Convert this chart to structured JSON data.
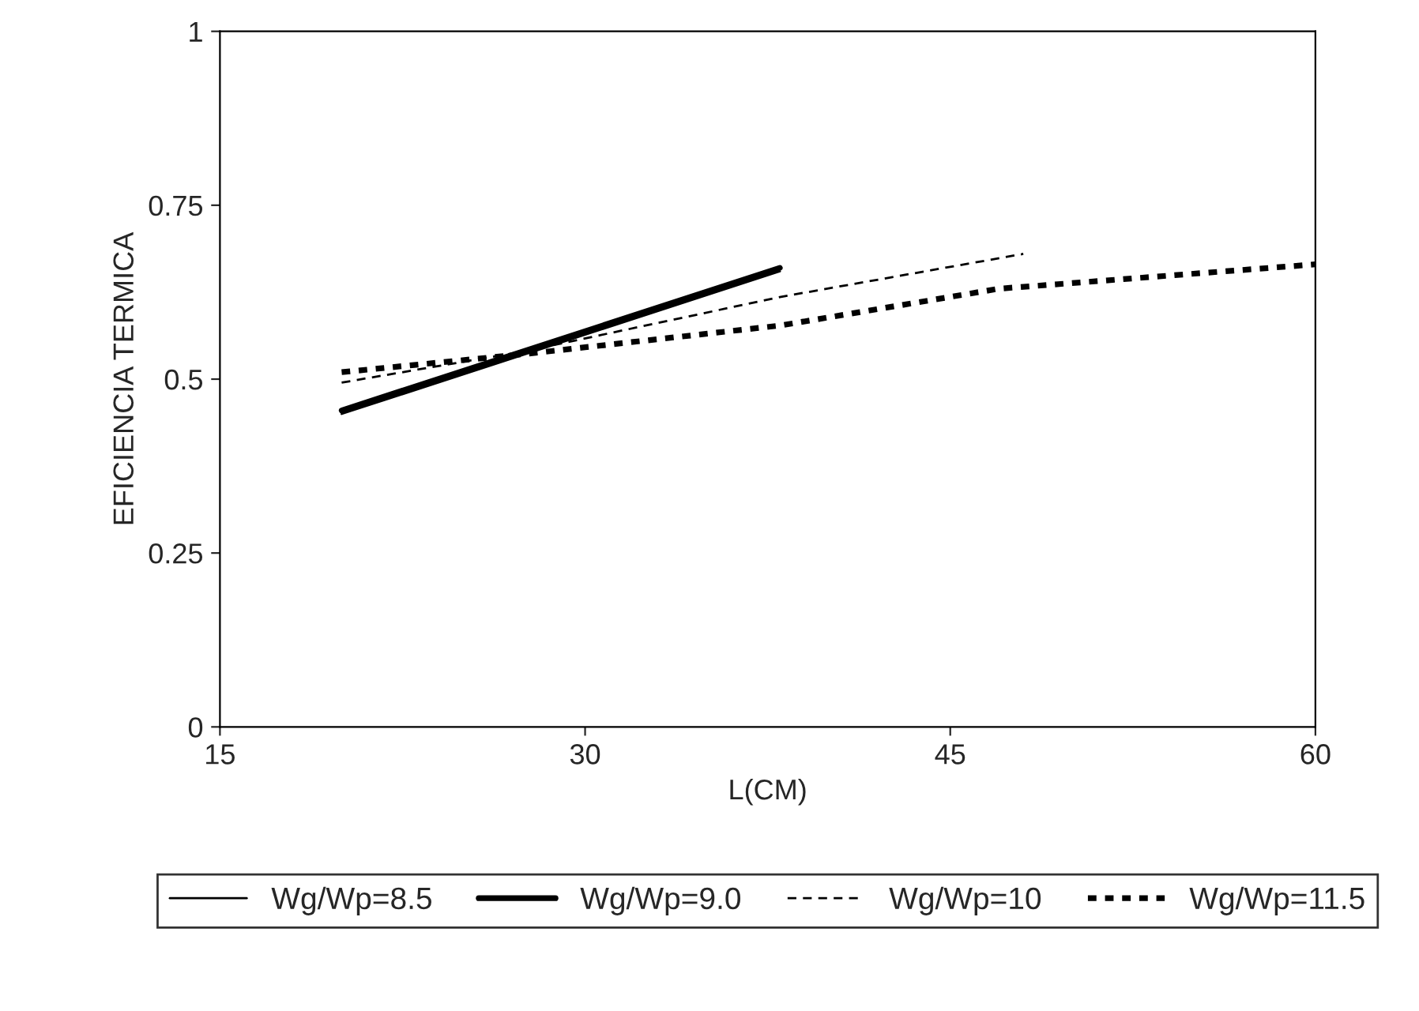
{
  "chart_data": {
    "type": "line",
    "xlabel": "L(CM)",
    "ylabel": "EFICIENCIA TERMICA",
    "xlim": [
      15,
      60
    ],
    "xticks": [
      15,
      30,
      45,
      60
    ],
    "ylim": [
      0,
      1
    ],
    "yticks": [
      0,
      0.25,
      0.5,
      0.75,
      1
    ],
    "grid": false,
    "legend": "bottom",
    "marker": "none",
    "series": [
      {
        "name": "Wg/Wp=8.5",
        "color": "#000000",
        "line_style": "solid",
        "x": [
          20,
          38
        ],
        "values": [
          0.45,
          0.655
        ]
      },
      {
        "name": "Wg/Wp=9.0",
        "color": "#000000",
        "line_style": "solid",
        "x": [
          20,
          38
        ],
        "values": [
          0.455,
          0.66
        ]
      },
      {
        "name": "Wg/Wp=10",
        "color": "#000000",
        "line_style": "dashed",
        "x": [
          20,
          27.5,
          38,
          48
        ],
        "values": [
          0.495,
          0.54,
          0.618,
          0.68
        ]
      },
      {
        "name": "Wg/Wp=11.5",
        "color": "#000000",
        "line_style": "dotted",
        "x": [
          20,
          27.5,
          38,
          47,
          60
        ],
        "values": [
          0.51,
          0.536,
          0.577,
          0.63,
          0.665
        ]
      }
    ]
  }
}
